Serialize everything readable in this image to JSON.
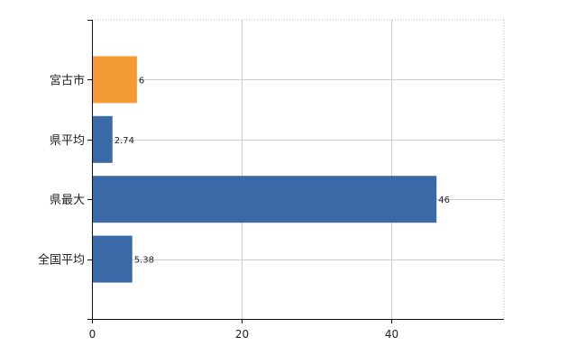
{
  "chart_data": {
    "type": "bar",
    "orientation": "horizontal",
    "categories": [
      "宮古市",
      "県平均",
      "県最大",
      "全国平均"
    ],
    "values": [
      6,
      2.74,
      46,
      5.38
    ],
    "data_labels": [
      "6",
      "2.74",
      "46",
      "5.38"
    ],
    "bar_colors": [
      "#f39a35",
      "#3a69a8",
      "#3a69a8",
      "#3a69a8"
    ],
    "highlight_color": "#f39a35",
    "default_color": "#3a69a8",
    "xlim": [
      0,
      55
    ],
    "x_ticks": [
      0,
      20,
      40
    ],
    "x_tick_labels": [
      "0",
      "20",
      "40"
    ],
    "title": "",
    "xlabel": "",
    "ylabel": "",
    "grid": true,
    "legend": "none"
  }
}
